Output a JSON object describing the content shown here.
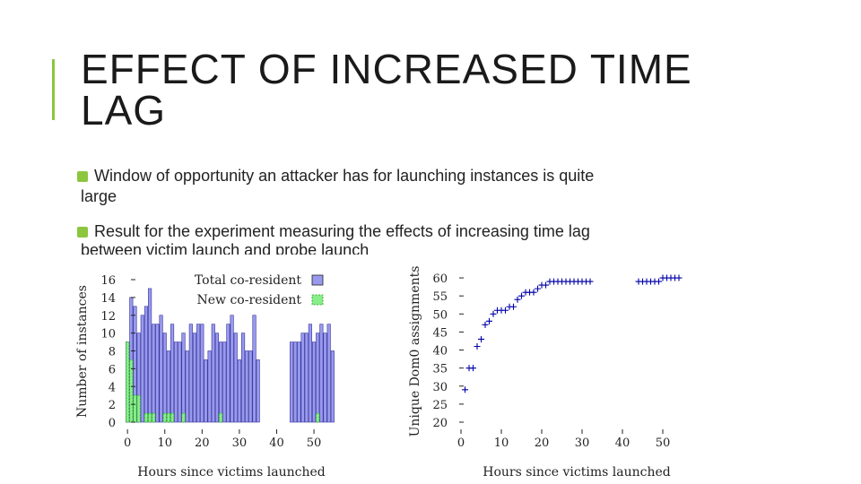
{
  "slide": {
    "title_line1": "EFFECT OF INCREASED TIME",
    "title_line2": "LAG",
    "bullets": [
      {
        "line1": "Window of opportunity an attacker has for launching instances is quite",
        "line2": "large"
      },
      {
        "line1": "Result for the experiment measuring the effects of increasing time lag",
        "line2": "between victim    launch and probe launch"
      }
    ]
  },
  "chart_data": [
    {
      "type": "bar",
      "xlabel": "Hours since victims launched",
      "ylabel": "Number of instances",
      "xticks": [
        0,
        10,
        20,
        30,
        40,
        50
      ],
      "yticks": [
        0,
        2,
        4,
        6,
        8,
        10,
        12,
        14,
        16
      ],
      "xlim": [
        -1,
        56
      ],
      "ylim": [
        0,
        16
      ],
      "legend_position": "top-right",
      "colors": {
        "total": "#9999ee",
        "new": "#88ee88"
      },
      "series": [
        {
          "name": "Total co-resident",
          "x": [
            0,
            1,
            2,
            3,
            4,
            5,
            6,
            7,
            8,
            9,
            10,
            11,
            12,
            13,
            14,
            15,
            16,
            17,
            18,
            19,
            20,
            21,
            22,
            23,
            24,
            25,
            26,
            27,
            28,
            29,
            30,
            31,
            32,
            33,
            34,
            35,
            44,
            45,
            46,
            47,
            48,
            49,
            50,
            51,
            52,
            53,
            54,
            55
          ],
          "values": [
            9,
            14,
            13,
            10,
            12,
            13,
            15,
            11,
            11,
            12,
            10,
            8,
            11,
            9,
            9,
            10,
            8,
            11,
            10,
            11,
            11,
            7,
            8,
            11,
            10,
            9,
            9,
            11,
            12,
            10,
            7,
            10,
            8,
            8,
            12,
            7,
            9,
            9,
            9,
            10,
            10,
            11,
            9,
            10,
            11,
            10,
            11,
            8
          ]
        },
        {
          "name": "New co-resident",
          "x": [
            0,
            1,
            2,
            3,
            5,
            6,
            7,
            10,
            11,
            12,
            15,
            25,
            51
          ],
          "values": [
            9,
            7,
            3,
            3,
            1,
            1,
            1,
            1,
            1,
            1,
            1,
            1,
            1
          ]
        }
      ]
    },
    {
      "type": "scatter",
      "xlabel": "Hours since victims launched",
      "ylabel": "Unique Dom0 assignments",
      "xticks": [
        0,
        10,
        20,
        30,
        40,
        50
      ],
      "yticks": [
        20,
        25,
        30,
        35,
        40,
        45,
        50,
        55,
        60
      ],
      "xlim": [
        -2,
        58
      ],
      "ylim": [
        20,
        62
      ],
      "marker": "+",
      "color": "#0000aa",
      "series": [
        {
          "x": [
            1,
            2,
            3,
            4,
            5,
            6,
            7,
            8,
            9,
            10,
            11,
            12,
            13,
            14,
            15,
            16,
            17,
            18,
            19,
            20,
            21,
            22,
            23,
            24,
            25,
            26,
            27,
            28,
            29,
            30,
            31,
            32,
            44,
            45,
            46,
            47,
            48,
            49,
            50,
            51,
            52,
            53,
            54
          ],
          "y": [
            29,
            35,
            35,
            41,
            43,
            47,
            48,
            50,
            51,
            51,
            51,
            52,
            52,
            54,
            55,
            56,
            56,
            56,
            57,
            58,
            58,
            59,
            59,
            59,
            59,
            59,
            59,
            59,
            59,
            59,
            59,
            59,
            59,
            59,
            59,
            59,
            59,
            59,
            60,
            60,
            60,
            60,
            60
          ]
        }
      ]
    }
  ]
}
